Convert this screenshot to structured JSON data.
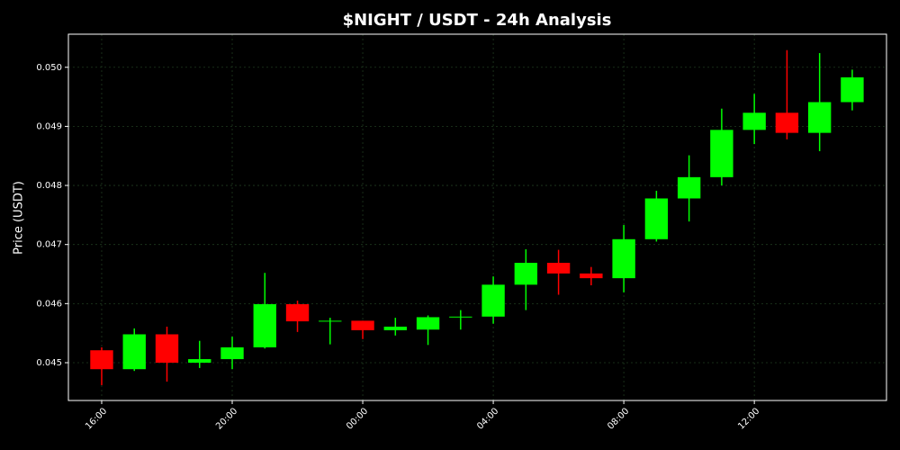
{
  "chart_data": {
    "type": "candlestick",
    "title": "$NIGHT / USDT - 24h Analysis",
    "y_label": "Price (USDT)",
    "categories": [
      "16:00",
      null,
      null,
      null,
      "20:00",
      null,
      null,
      null,
      "00:00",
      null,
      null,
      null,
      "04:00",
      null,
      null,
      null,
      "08:00",
      null,
      null,
      null,
      "12:00",
      null,
      null,
      null
    ],
    "open": [
      0.04521,
      0.04489,
      0.04548,
      0.045,
      0.04506,
      0.04526,
      0.04599,
      0.0457,
      0.04571,
      0.04555,
      0.04556,
      0.04577,
      0.04578,
      0.04632,
      0.04669,
      0.04651,
      0.04643,
      0.04709,
      0.04778,
      0.04814,
      0.04894,
      0.04923,
      0.04889,
      0.04941
    ],
    "high": [
      0.04526,
      0.04558,
      0.04561,
      0.04537,
      0.04544,
      0.04652,
      0.04605,
      0.04576,
      0.04571,
      0.04576,
      0.0458,
      0.04589,
      0.04646,
      0.04692,
      0.04691,
      0.04662,
      0.04733,
      0.04791,
      0.04851,
      0.0493,
      0.04955,
      0.05029,
      0.05024,
      0.04996
    ],
    "low": [
      0.04462,
      0.04486,
      0.04468,
      0.04491,
      0.04489,
      0.04524,
      0.04552,
      0.04531,
      0.0454,
      0.04546,
      0.0453,
      0.04556,
      0.04566,
      0.04589,
      0.04615,
      0.04631,
      0.04619,
      0.04705,
      0.04739,
      0.048,
      0.0487,
      0.04878,
      0.04858,
      0.04927
    ],
    "close": [
      0.04489,
      0.04548,
      0.045,
      0.04506,
      0.04526,
      0.04599,
      0.0457,
      0.04571,
      0.04555,
      0.04561,
      0.04577,
      0.04578,
      0.04632,
      0.04669,
      0.04651,
      0.04643,
      0.04709,
      0.04778,
      0.04814,
      0.04894,
      0.04923,
      0.04889,
      0.04941,
      0.04983
    ],
    "up_color": "#00ff00",
    "down_color": "#ff0000",
    "ylim": [
      0.04436,
      0.05056
    ],
    "yticks": [
      0.045,
      0.046,
      0.047,
      0.048,
      0.049,
      {
        "value": 0.05,
        "label": "0.050"
      }
    ],
    "grid": true
  }
}
